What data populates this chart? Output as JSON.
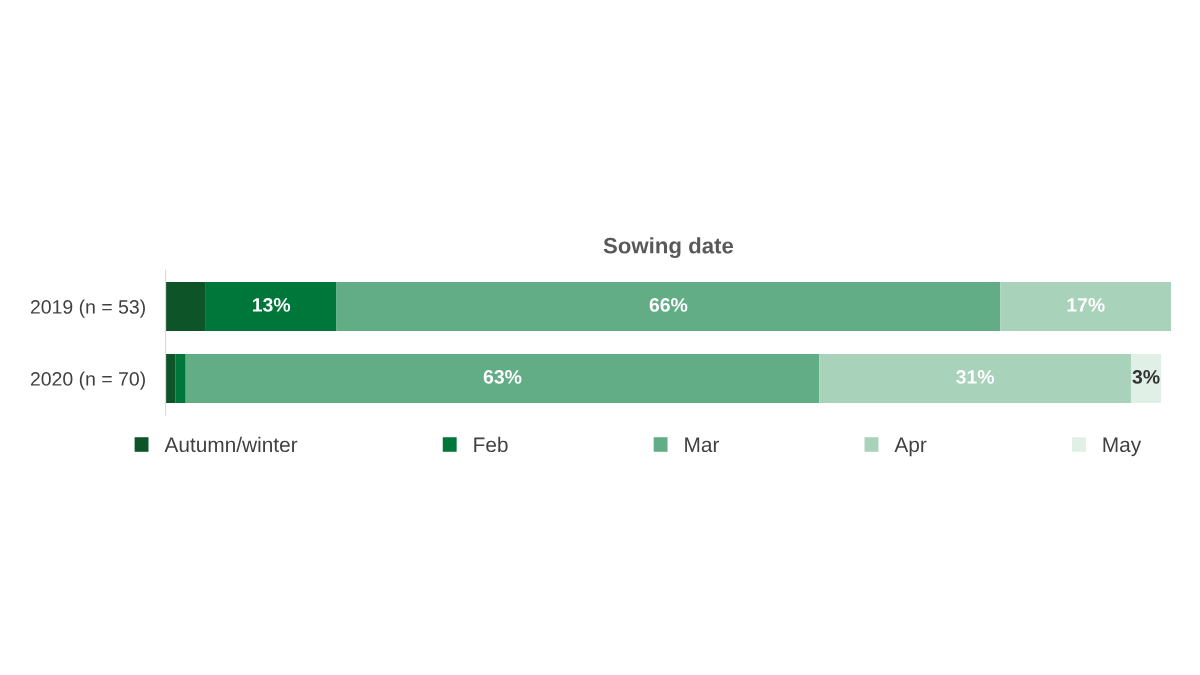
{
  "chart_data": {
    "type": "bar",
    "orientation": "horizontal",
    "stacked": true,
    "title": "Sowing date",
    "categories": [
      "2019 (n = 53)",
      "2020 (n = 70)"
    ],
    "series": [
      {
        "name": "Autumn/winter",
        "color": "#0d5428",
        "values": [
          4,
          1
        ],
        "value_labels": [
          null,
          null
        ]
      },
      {
        "name": "Feb",
        "color": "#00773a",
        "values": [
          13,
          1
        ],
        "value_labels": [
          "13%",
          null
        ]
      },
      {
        "name": "Mar",
        "color": "#62ad85",
        "values": [
          66,
          63
        ],
        "value_labels": [
          "66%",
          "63%"
        ]
      },
      {
        "name": "Apr",
        "color": "#a8d2b9",
        "values": [
          17,
          31
        ],
        "value_labels": [
          "17%",
          "31%"
        ]
      },
      {
        "name": "May",
        "color": "#e0f0e6",
        "values": [
          null,
          3
        ],
        "value_labels": [
          null,
          "3%"
        ]
      }
    ],
    "xlim": [
      0,
      100
    ],
    "tick_labels": "y",
    "grid": false,
    "legend": "bottom"
  }
}
